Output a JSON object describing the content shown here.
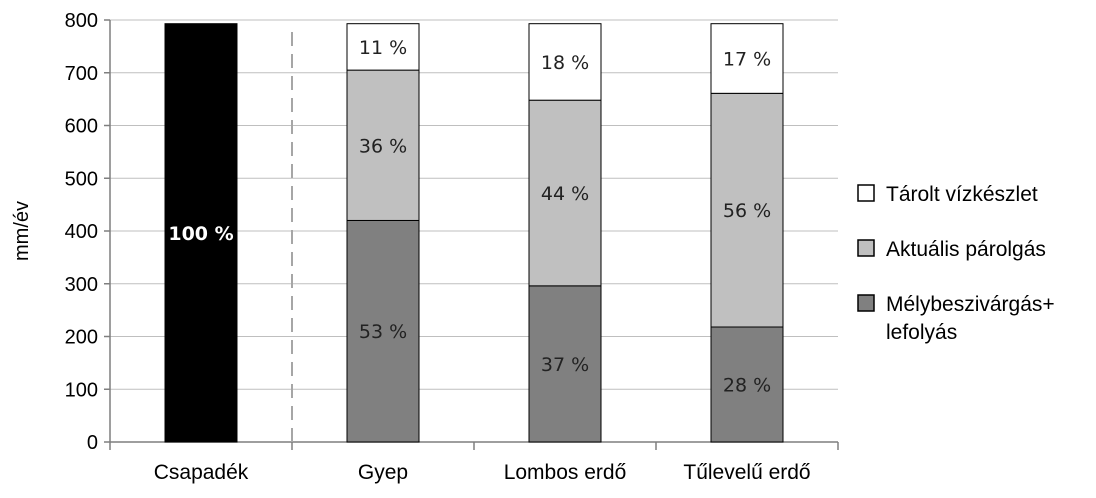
{
  "chart_data": {
    "type": "bar",
    "stacked": true,
    "title": "",
    "xlabel": "",
    "ylabel": "mm/év",
    "ylim": [
      0,
      800
    ],
    "yticks": [
      0,
      100,
      200,
      300,
      400,
      500,
      600,
      700,
      800
    ],
    "grid": true,
    "legend_position": "right",
    "categories": [
      "Csapadék",
      "Gyep",
      "Lombos erdő",
      "Tűlevelű erdő"
    ],
    "series": [
      {
        "name": "Mélybeszivárgás+ lefolyás",
        "color": "#808080",
        "values": [
          null,
          420,
          296,
          218
        ],
        "labels": [
          "",
          "53 %",
          "37 %",
          "28 %"
        ]
      },
      {
        "name": "Aktuális párolgás",
        "color": "#c0c0c0",
        "values": [
          null,
          285,
          352,
          443
        ],
        "labels": [
          "",
          "36 %",
          "44 %",
          "56 %"
        ]
      },
      {
        "name": "Tárolt vízkészlet",
        "color": "#ffffff",
        "values": [
          null,
          88,
          145,
          132
        ],
        "labels": [
          "",
          "11 %",
          "18 %",
          "17 %"
        ]
      },
      {
        "name": "Csapadék",
        "color": "#000000",
        "values": [
          793,
          null,
          null,
          null
        ],
        "labels": [
          "100 %",
          "",
          "",
          ""
        ]
      }
    ],
    "legend": [
      {
        "label": "Tárolt vízkészlet",
        "color": "#ffffff"
      },
      {
        "label": "Aktuális párolgás",
        "color": "#c0c0c0"
      },
      {
        "label_lines": [
          "Mélybeszivárgás+",
          "lefolyás"
        ],
        "color": "#808080"
      }
    ]
  }
}
